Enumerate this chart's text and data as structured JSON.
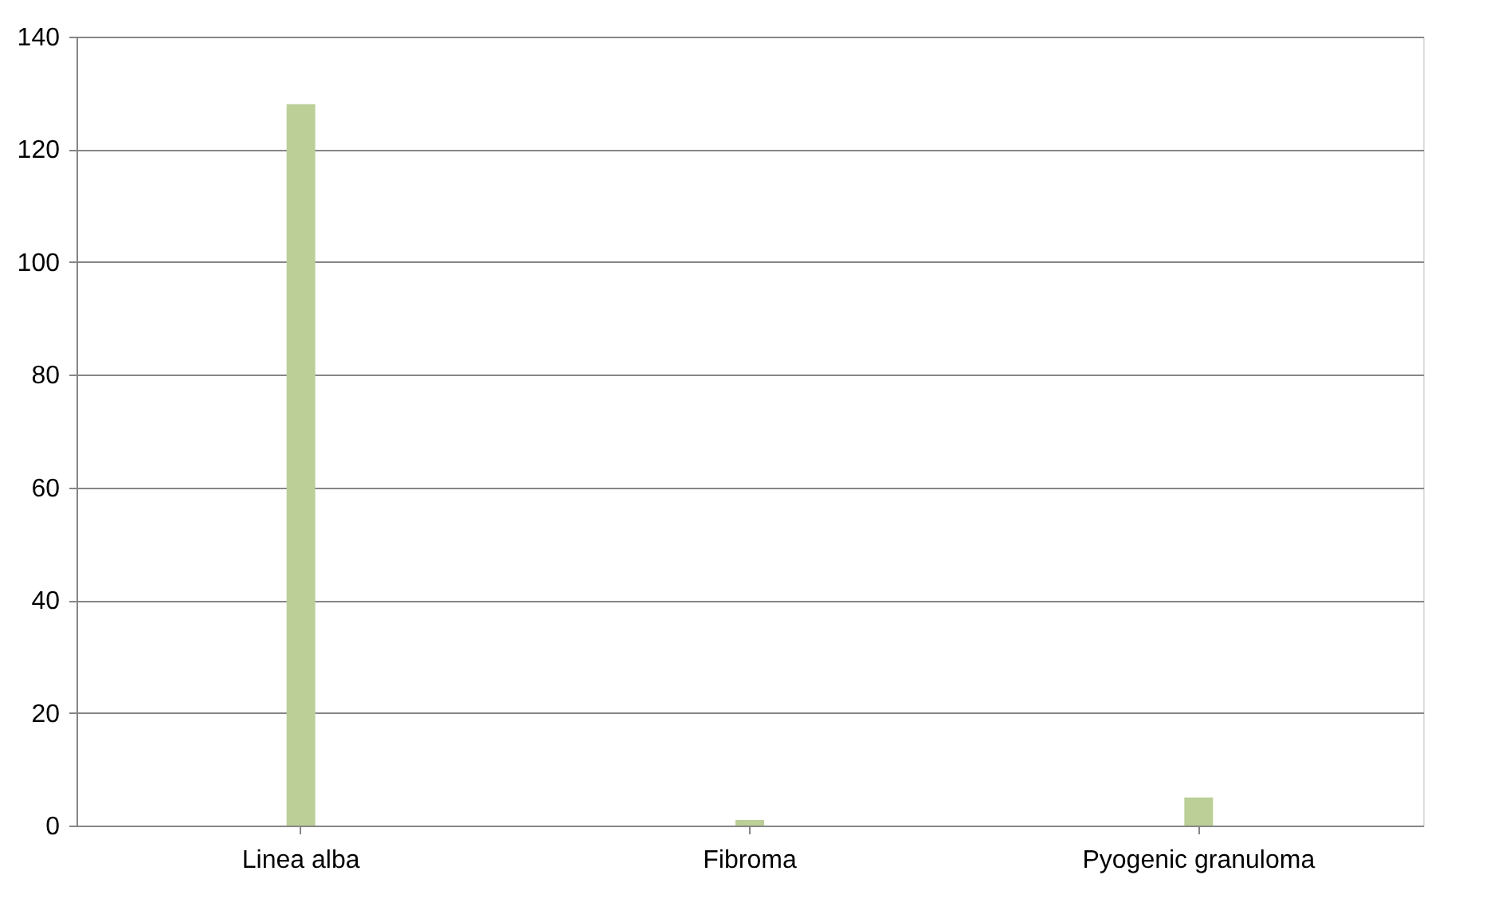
{
  "chart_data": {
    "type": "bar",
    "categories": [
      "Linea alba",
      "Fibroma",
      "Pyogenic granuloma"
    ],
    "values": [
      128,
      1,
      5
    ],
    "color": "#bbcf97",
    "ylim": [
      0,
      140
    ],
    "yticks": [
      0,
      20,
      40,
      60,
      80,
      100,
      120,
      140
    ],
    "grid": "y"
  }
}
